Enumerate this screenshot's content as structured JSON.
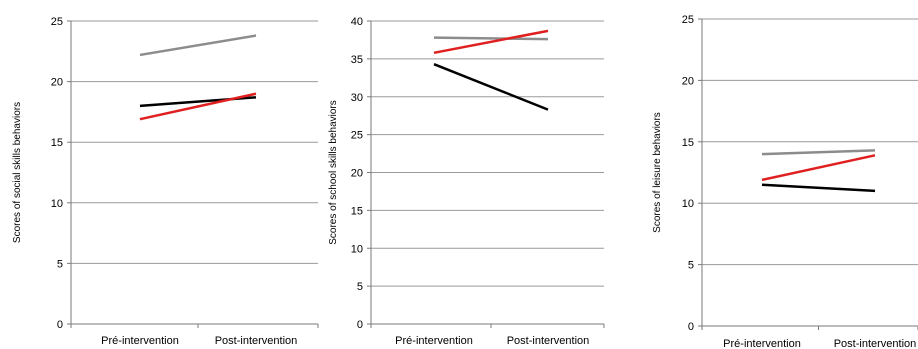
{
  "chart_data": [
    {
      "type": "line",
      "title": "",
      "categories": [
        "Pré-intervention",
        "Post-intervention"
      ],
      "ylabel": "Scores of social skills behaviors",
      "xlabel": "",
      "ylim": [
        0,
        25
      ],
      "yticks": [
        "0",
        "5",
        "10",
        "15",
        "20",
        "25"
      ],
      "grid": true,
      "series": [
        {
          "color": "#8c8c8c",
          "values": [
            22.2,
            23.8
          ]
        },
        {
          "color": "#000000",
          "values": [
            18.0,
            18.7
          ]
        },
        {
          "color": "#e02020",
          "values": [
            16.9,
            19.0
          ]
        }
      ]
    },
    {
      "type": "line",
      "title": "",
      "categories": [
        "Pré-intervention",
        "Post-intervention"
      ],
      "ylabel": "Scores of school skills behaviors",
      "xlabel": "",
      "ylim": [
        0,
        40
      ],
      "yticks": [
        "0",
        "5",
        "10",
        "15",
        "20",
        "25",
        "30",
        "35",
        "40"
      ],
      "grid": true,
      "series": [
        {
          "color": "#8c8c8c",
          "values": [
            37.8,
            37.6
          ]
        },
        {
          "color": "#000000",
          "values": [
            34.3,
            28.3
          ]
        },
        {
          "color": "#e02020",
          "values": [
            35.8,
            38.7
          ]
        }
      ]
    },
    {
      "type": "line",
      "title": "",
      "categories": [
        "Pré-intervention",
        "Post-intervention"
      ],
      "ylabel": "Scores of leisure behaviors",
      "xlabel": "",
      "ylim": [
        0,
        25
      ],
      "yticks": [
        "0",
        "5",
        "10",
        "15",
        "20",
        "25"
      ],
      "grid": true,
      "series": [
        {
          "color": "#8c8c8c",
          "values": [
            14.0,
            14.3
          ]
        },
        {
          "color": "#000000",
          "values": [
            11.5,
            11.0
          ]
        },
        {
          "color": "#e02020",
          "values": [
            11.9,
            13.9
          ]
        }
      ]
    }
  ]
}
